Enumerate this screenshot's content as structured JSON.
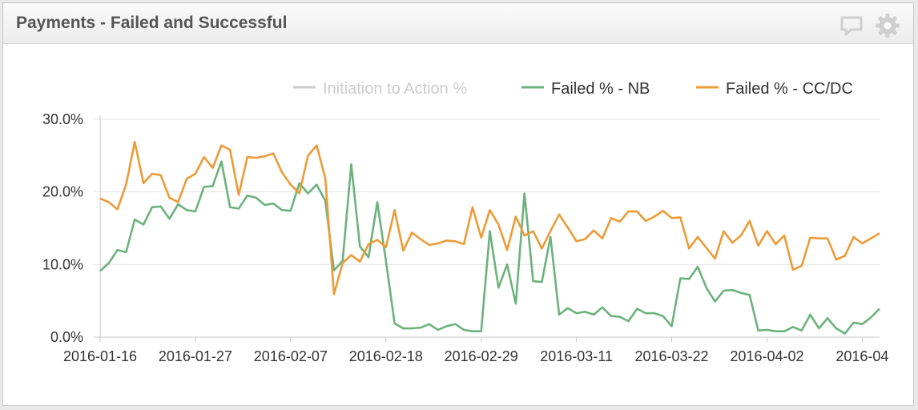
{
  "panel": {
    "title": "Payments - Failed and Successful",
    "comment_icon": "comment-icon",
    "gear_icon": "gear-icon"
  },
  "colors": {
    "nb": "#6cb27c",
    "ccdc": "#ec9b37",
    "initiation": "#cccccc"
  },
  "chart_data": {
    "type": "line",
    "title": "",
    "xlabel": "",
    "ylabel": "",
    "grid": true,
    "legend_position": "top-right",
    "ylim": [
      0,
      30
    ],
    "y_ticks": [
      "0.0%",
      "10.0%",
      "20.0%",
      "30.0%"
    ],
    "x_tick_labels": [
      "2016-01-16",
      "2016-01-27",
      "2016-02-07",
      "2016-02-18",
      "2016-02-29",
      "2016-03-11",
      "2016-03-22",
      "2016-04-02",
      "2016-04"
    ],
    "x_start": "2016-01-16",
    "x_end": "2016-04-13",
    "series": [
      {
        "name": "Initiation to Action %",
        "visible": false,
        "values": []
      },
      {
        "name": "Failed % - NB",
        "values": [
          9.1,
          10.2,
          12.0,
          11.7,
          16.2,
          15.5,
          17.9,
          18.0,
          16.3,
          18.3,
          17.5,
          17.3,
          20.7,
          20.8,
          24.2,
          17.9,
          17.7,
          19.5,
          19.2,
          18.2,
          18.4,
          17.5,
          17.4,
          21.2,
          19.8,
          21.0,
          18.8,
          9.2,
          10.5,
          23.8,
          12.5,
          11.0,
          18.6,
          10.5,
          1.9,
          1.2,
          1.2,
          1.3,
          1.8,
          1.0,
          1.5,
          1.8,
          1.0,
          0.8,
          0.8,
          14.6,
          6.8,
          10.0,
          4.6,
          19.8,
          7.7,
          7.6,
          13.8,
          3.1,
          4.0,
          3.3,
          3.5,
          3.1,
          4.1,
          2.9,
          2.8,
          2.2,
          3.9,
          3.3,
          3.3,
          2.9,
          1.5,
          8.1,
          8.0,
          9.7,
          6.8,
          4.9,
          6.4,
          6.5,
          6.1,
          5.8,
          0.9,
          1.0,
          0.8,
          0.8,
          1.4,
          0.9,
          3.1,
          1.2,
          2.6,
          1.2,
          0.5,
          2.0,
          1.8,
          2.7,
          3.9
        ]
      },
      {
        "name": "Failed % - CC/DC",
        "values": [
          19.1,
          18.6,
          17.6,
          21.0,
          26.9,
          21.2,
          22.5,
          22.3,
          19.2,
          18.6,
          21.8,
          22.5,
          24.8,
          23.3,
          26.4,
          25.8,
          19.6,
          24.8,
          24.7,
          24.9,
          25.3,
          22.7,
          21.0,
          19.8,
          25.0,
          26.4,
          21.9,
          5.9,
          10.2,
          11.3,
          10.4,
          12.8,
          13.4,
          12.4,
          17.5,
          11.9,
          14.4,
          13.5,
          12.7,
          12.9,
          13.3,
          13.2,
          12.8,
          17.9,
          13.7,
          17.5,
          15.5,
          12.0,
          16.6,
          14.0,
          14.6,
          12.2,
          14.6,
          16.9,
          15.1,
          13.2,
          13.5,
          14.7,
          13.6,
          16.4,
          15.9,
          17.3,
          17.3,
          16.0,
          16.6,
          17.4,
          16.4,
          16.5,
          12.2,
          13.8,
          12.3,
          10.8,
          14.6,
          13.0,
          14.0,
          16.0,
          12.6,
          14.6,
          12.8,
          14.0,
          9.3,
          9.8,
          13.7,
          13.6,
          13.6,
          10.7,
          11.2,
          13.8,
          12.9,
          13.6,
          14.3
        ]
      }
    ]
  }
}
